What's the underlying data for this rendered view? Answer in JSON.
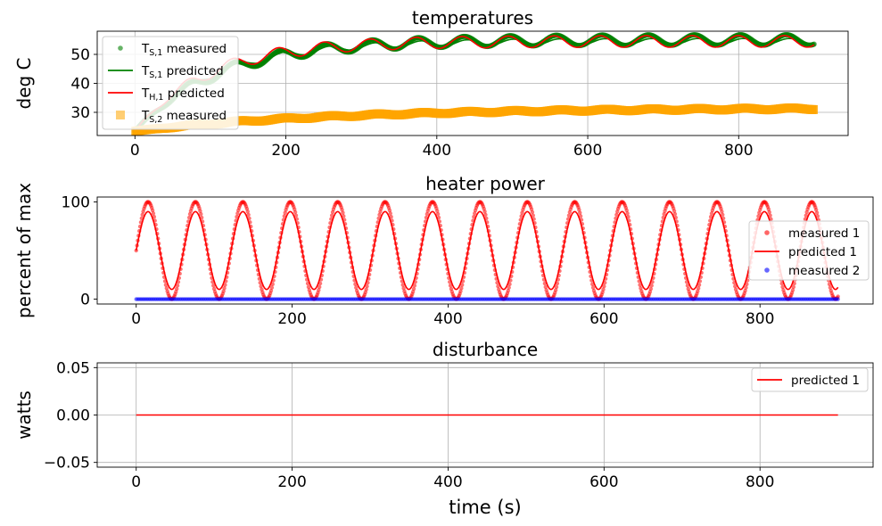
{
  "chart_data": [
    {
      "type": "line",
      "title": "temperatures",
      "xlabel": "",
      "ylabel": "deg C",
      "xlim": [
        -50,
        945
      ],
      "ylim": [
        22,
        58
      ],
      "xticks": [
        0,
        200,
        400,
        600,
        800
      ],
      "xticklabels": [
        "0",
        "200",
        "400",
        "600",
        "800"
      ],
      "yticks": [
        30,
        40,
        50
      ],
      "yticklabels": [
        "30",
        "40",
        "50"
      ],
      "grid": true,
      "legend_position": "upper-left",
      "series": [
        {
          "name": "measured",
          "label_main": "T",
          "label_sub": "S,1",
          "style": "scatter",
          "color": "#008000",
          "model": {
            "type": "temp_measured",
            "x0": 0,
            "x1": 900,
            "base_start": 23.5,
            "base_end": 55,
            "tau": 110,
            "amp": 1.8,
            "period": 61,
            "phase": 0.6
          }
        },
        {
          "name": "predicted",
          "label_main": "T",
          "label_sub": "S,1",
          "style": "line",
          "color": "#008000",
          "model": {
            "type": "temp_predicted",
            "x0": 0,
            "x1": 900,
            "base_start": 23.5,
            "base_end": 54.5,
            "tau": 105,
            "amp": 1.0,
            "period": 61,
            "phase": 0.2
          }
        },
        {
          "name": "predicted",
          "label_main": "T",
          "label_sub": "H,1",
          "style": "line",
          "color": "#ff0000",
          "model": {
            "type": "temp_predicted",
            "x0": 0,
            "x1": 900,
            "base_start": 23.5,
            "base_end": 54.5,
            "tau": 95,
            "amp": 2.0,
            "period": 61,
            "phase": 0.9
          }
        },
        {
          "name": "measured",
          "label_main": "T",
          "label_sub": "S,2",
          "style": "square",
          "color": "#ffa500",
          "model": {
            "type": "temp_measured2",
            "x0": 0,
            "x1": 900,
            "base_start": 23.5,
            "base_end": 31.5,
            "tau": 260,
            "amp": 0.3,
            "period": 61,
            "phase": 0.0
          }
        }
      ]
    },
    {
      "type": "line",
      "title": "heater power",
      "xlabel": "",
      "ylabel": "percent of max",
      "xlim": [
        -50,
        945
      ],
      "ylim": [
        -5,
        105
      ],
      "xticks": [
        0,
        200,
        400,
        600,
        800
      ],
      "xticklabels": [
        "0",
        "200",
        "400",
        "600",
        "800"
      ],
      "yticks": [
        0,
        100
      ],
      "yticklabels": [
        "0",
        "100"
      ],
      "grid": false,
      "legend_position": "right",
      "series": [
        {
          "name": "measured 1",
          "style": "scatter",
          "color": "#ff0000",
          "model": {
            "type": "sine",
            "x0": 0,
            "x1": 900,
            "mid": 50,
            "amp": 50,
            "period": 60.8,
            "phase": 0.0
          }
        },
        {
          "name": "predicted 1",
          "style": "line",
          "color": "#ff0000",
          "model": {
            "type": "sine",
            "x0": 0,
            "x1": 900,
            "mid": 50,
            "amp": 40,
            "period": 60.8,
            "phase": 0.0
          }
        },
        {
          "name": "measured 2",
          "style": "scatter",
          "color": "#0000ff",
          "model": {
            "type": "const",
            "x0": 0,
            "x1": 900,
            "value": 0
          }
        }
      ]
    },
    {
      "type": "line",
      "title": "disturbance",
      "xlabel": "time (s)",
      "ylabel": "watts",
      "xlim": [
        -50,
        945
      ],
      "ylim": [
        -0.055,
        0.055
      ],
      "xticks": [
        0,
        200,
        400,
        600,
        800
      ],
      "xticklabels": [
        "0",
        "200",
        "400",
        "600",
        "800"
      ],
      "yticks": [
        -0.05,
        0.0,
        0.05
      ],
      "yticklabels": [
        "−0.05",
        "0.00",
        "0.05"
      ],
      "grid": true,
      "legend_position": "upper-right",
      "series": [
        {
          "name": "predicted 1",
          "style": "line",
          "color": "#ff0000",
          "model": {
            "type": "const",
            "x0": 0,
            "x1": 900,
            "value": 0
          }
        }
      ]
    }
  ]
}
